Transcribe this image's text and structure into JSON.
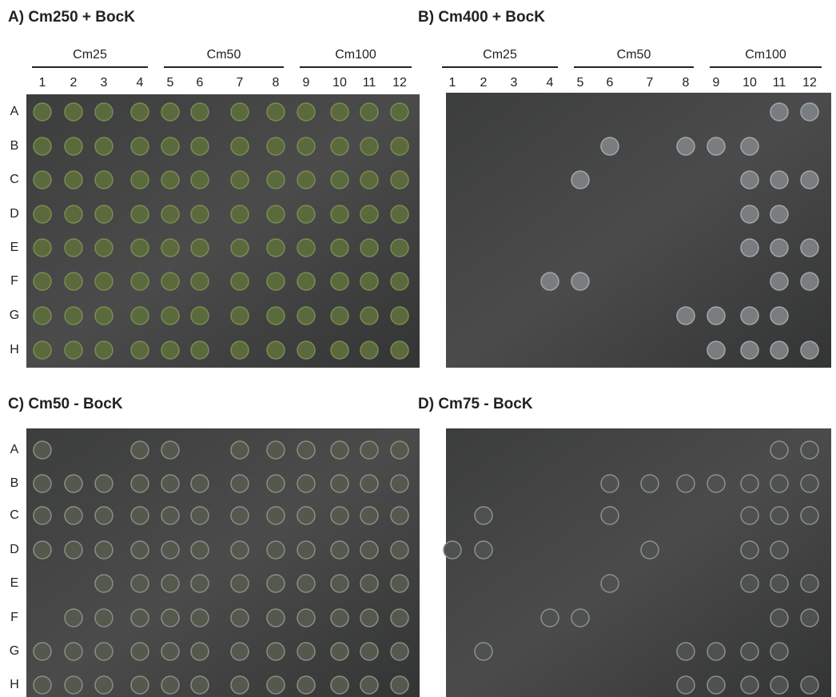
{
  "panels": [
    {
      "title": "A) Cm250 + BocK",
      "groups": [
        "Cm25",
        "Cm50",
        "Cm100"
      ],
      "columns": [
        "1",
        "2",
        "3",
        "4",
        "5",
        "6",
        "7",
        "8",
        "9",
        "10",
        "11",
        "12"
      ],
      "rows": [
        "A",
        "B",
        "C",
        "D",
        "E",
        "F",
        "G",
        "H"
      ]
    },
    {
      "title": "B) Cm400 + BocK",
      "groups": [
        "Cm25",
        "Cm50",
        "Cm100"
      ],
      "columns": [
        "1",
        "2",
        "3",
        "4",
        "5",
        "6",
        "7",
        "8",
        "9",
        "10",
        "11",
        "12"
      ]
    },
    {
      "title": "C) Cm50 - BocK",
      "rows": [
        "A",
        "B",
        "C",
        "D",
        "E",
        "F",
        "G",
        "H"
      ]
    },
    {
      "title": "D) Cm75 - BocK"
    }
  ]
}
